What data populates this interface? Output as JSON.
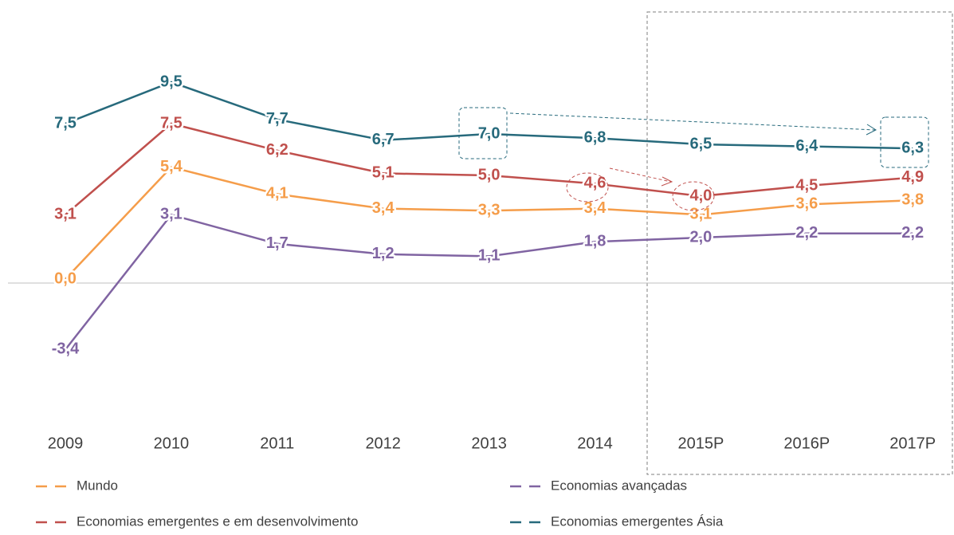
{
  "chart_data": {
    "type": "line",
    "categories": [
      "2009",
      "2010",
      "2011",
      "2012",
      "2013",
      "2014",
      "2015P",
      "2016P",
      "2017P"
    ],
    "ylim": [
      -6,
      11
    ],
    "series": [
      {
        "name": "Mundo",
        "color": "#f59d4a",
        "values": [
          0.0,
          5.4,
          4.1,
          3.4,
          3.3,
          3.4,
          3.1,
          3.6,
          3.8
        ],
        "value_labels": [
          "0,0",
          "5,4",
          "4,1",
          "3,4",
          "3,3",
          "3,4",
          "3,1",
          "3,6",
          "3,8"
        ]
      },
      {
        "name": "Economias avançadas",
        "color": "#8064a2",
        "values": [
          -3.4,
          3.1,
          1.7,
          1.2,
          1.1,
          1.8,
          2.0,
          2.2,
          2.2
        ],
        "value_labels": [
          "-3,4",
          "3,1",
          "1,7",
          "1,2",
          "1,1",
          "1,8",
          "2,0",
          "2,2",
          "2,2"
        ]
      },
      {
        "name": "Economias emergentes e em desenvolvimento",
        "color": "#c0504d",
        "values": [
          3.1,
          7.5,
          6.2,
          5.1,
          5.0,
          4.6,
          4.0,
          4.5,
          4.9
        ],
        "value_labels": [
          "3,1",
          "7,5",
          "6,2",
          "5,1",
          "5,0",
          "4,6",
          "4,0",
          "4,5",
          "4,9"
        ]
      },
      {
        "name": "Economias emergentes Ásia",
        "color": "#276a7c",
        "values": [
          7.5,
          9.5,
          7.7,
          6.7,
          7.0,
          6.8,
          6.5,
          6.4,
          6.3
        ],
        "value_labels": [
          "7,5",
          "9,5",
          "7,7",
          "6,7",
          "7,0",
          "6,8",
          "6,5",
          "6,4",
          "6,3"
        ]
      }
    ]
  }
}
